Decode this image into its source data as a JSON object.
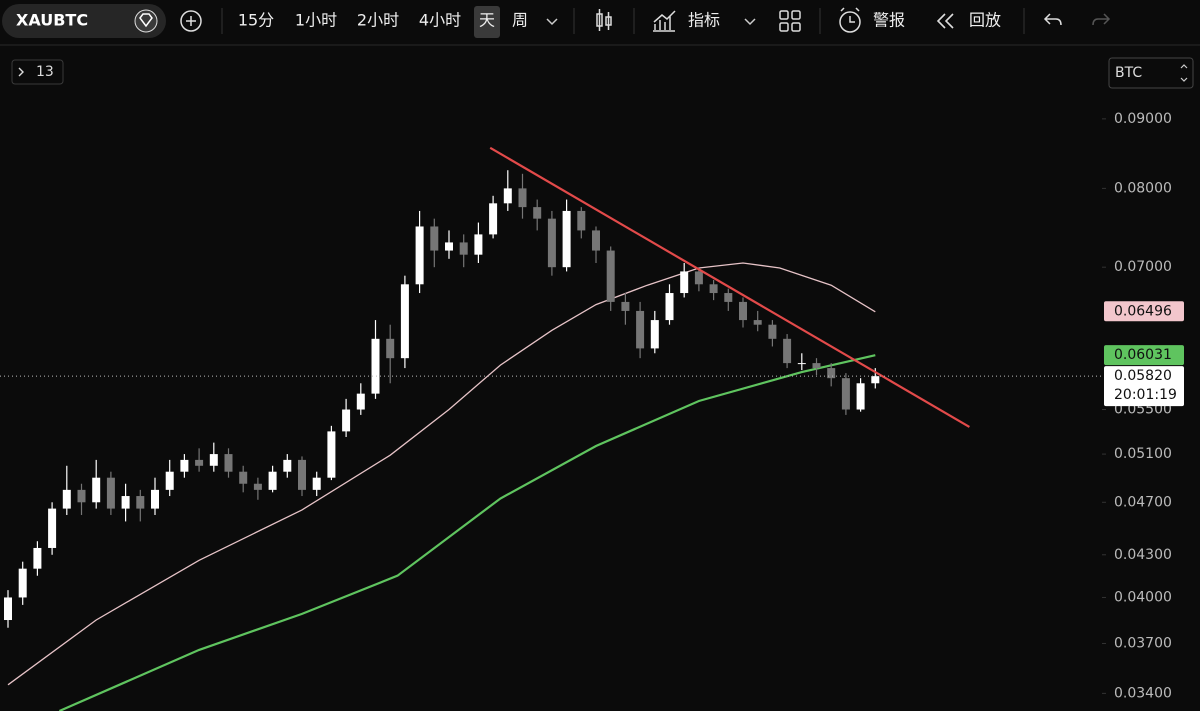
{
  "toolbar": {
    "symbol": "XAUBTC",
    "intervals": [
      "15分",
      "1小时",
      "2小时",
      "4小时",
      "天",
      "周"
    ],
    "active_interval": 4,
    "indicators": "指标",
    "alert": "警报",
    "replay": "回放"
  },
  "legend_count": "13",
  "currency": "BTC",
  "chart_data": {
    "type": "candlestick",
    "open": [
      0.0385,
      0.04,
      0.042,
      0.0435,
      0.0465,
      0.048,
      0.047,
      0.049,
      0.0465,
      0.0475,
      0.0465,
      0.048,
      0.0495,
      0.0505,
      0.05,
      0.051,
      0.0495,
      0.0485,
      0.048,
      0.0495,
      0.0505,
      0.048,
      0.049,
      0.053,
      0.055,
      0.0565,
      0.062,
      0.06,
      0.068,
      0.075,
      0.072,
      0.073,
      0.0715,
      0.074,
      0.078,
      0.08,
      0.0775,
      0.076,
      0.07,
      0.077,
      0.0745,
      0.072,
      0.066,
      0.065,
      0.061,
      0.064,
      0.067,
      0.0695,
      0.068,
      0.067,
      0.066,
      0.064,
      0.0635,
      0.062,
      0.0595,
      0.0595,
      0.059,
      0.058,
      0.055,
      0.0575
    ],
    "high": [
      0.0405,
      0.0425,
      0.044,
      0.047,
      0.05,
      0.0485,
      0.0505,
      0.0495,
      0.0485,
      0.048,
      0.049,
      0.0505,
      0.051,
      0.0515,
      0.052,
      0.0515,
      0.05,
      0.049,
      0.05,
      0.051,
      0.0508,
      0.0495,
      0.0535,
      0.056,
      0.0575,
      0.064,
      0.0635,
      0.069,
      0.077,
      0.076,
      0.0745,
      0.074,
      0.0755,
      0.079,
      0.0825,
      0.082,
      0.0785,
      0.077,
      0.0785,
      0.0775,
      0.075,
      0.0725,
      0.067,
      0.066,
      0.065,
      0.068,
      0.0705,
      0.07,
      0.0685,
      0.0675,
      0.0665,
      0.065,
      0.064,
      0.0625,
      0.0605,
      0.06,
      0.0595,
      0.0585,
      0.058,
      0.059
    ],
    "low": [
      0.038,
      0.0395,
      0.0415,
      0.043,
      0.046,
      0.046,
      0.0465,
      0.046,
      0.0455,
      0.0455,
      0.046,
      0.0475,
      0.049,
      0.0495,
      0.0495,
      0.049,
      0.0478,
      0.0472,
      0.0478,
      0.049,
      0.0475,
      0.0475,
      0.0488,
      0.0525,
      0.0545,
      0.056,
      0.0575,
      0.059,
      0.067,
      0.07,
      0.071,
      0.07,
      0.0705,
      0.0735,
      0.077,
      0.076,
      0.0745,
      0.069,
      0.0695,
      0.0735,
      0.0705,
      0.065,
      0.0635,
      0.06,
      0.0605,
      0.0635,
      0.0665,
      0.0672,
      0.0662,
      0.065,
      0.0632,
      0.0628,
      0.0612,
      0.059,
      0.0588,
      0.0583,
      0.0572,
      0.0545,
      0.0548,
      0.057
    ],
    "close": [
      0.04,
      0.042,
      0.0435,
      0.0465,
      0.048,
      0.047,
      0.049,
      0.0465,
      0.0475,
      0.0465,
      0.048,
      0.0495,
      0.0505,
      0.05,
      0.051,
      0.0495,
      0.0485,
      0.048,
      0.0495,
      0.0505,
      0.048,
      0.049,
      0.053,
      0.055,
      0.0565,
      0.062,
      0.06,
      0.068,
      0.075,
      0.072,
      0.073,
      0.0715,
      0.074,
      0.078,
      0.08,
      0.0775,
      0.076,
      0.07,
      0.077,
      0.0745,
      0.072,
      0.066,
      0.065,
      0.061,
      0.064,
      0.067,
      0.0695,
      0.068,
      0.067,
      0.066,
      0.064,
      0.0635,
      0.062,
      0.0595,
      0.0595,
      0.059,
      0.058,
      0.055,
      0.0575,
      0.0582
    ],
    "up_color": "#ffffff",
    "down_color": "#767676",
    "log_scale": true,
    "ylim": [
      0.033,
      0.102
    ],
    "yticks": [
      {
        "value": 0.09,
        "label": "0.09000"
      },
      {
        "value": 0.08,
        "label": "0.08000"
      },
      {
        "value": 0.07,
        "label": "0.07000"
      },
      {
        "value": 0.055,
        "label": "0.05500"
      },
      {
        "value": 0.051,
        "label": "0.05100"
      },
      {
        "value": 0.047,
        "label": "0.04700"
      },
      {
        "value": 0.043,
        "label": "0.04300"
      },
      {
        "value": 0.04,
        "label": "0.04000"
      },
      {
        "value": 0.037,
        "label": "0.03700"
      },
      {
        "value": 0.034,
        "label": "0.03400"
      }
    ],
    "lines": [
      {
        "color": "#e6c3c7",
        "x": [
          0,
          6,
          13,
          20,
          26,
          30,
          33.5,
          37,
          40,
          43.5,
          47,
          50,
          52.5,
          56,
          59
        ],
        "values": [
          0.0345,
          0.0385,
          0.0426,
          0.0464,
          0.0509,
          0.055,
          0.0593,
          0.0629,
          0.0657,
          0.0679,
          0.0699,
          0.0705,
          0.0699,
          0.0679,
          0.0649
        ]
      },
      {
        "color": "#5fc45f",
        "x": [
          3.5,
          13,
          20,
          26.5,
          33.5,
          40,
          47,
          54,
          59
        ],
        "values": [
          0.033,
          0.0366,
          0.0389,
          0.0415,
          0.0473,
          0.0517,
          0.0558,
          0.0586,
          0.0603
        ]
      }
    ],
    "trendline": {
      "color": "#e24a4a",
      "x": [
        32.8,
        65.4
      ],
      "values": [
        0.0857,
        0.0534
      ]
    },
    "price_tags": [
      {
        "value": 0.06496,
        "label": "0.06496",
        "color": "#f2c6cc"
      },
      {
        "value": 0.06031,
        "label": "0.06031",
        "color": "#5fc45f"
      },
      {
        "value": 0.0582,
        "label": "0.05820",
        "color": "#ffffff"
      }
    ],
    "countdown": "20:01:19"
  }
}
